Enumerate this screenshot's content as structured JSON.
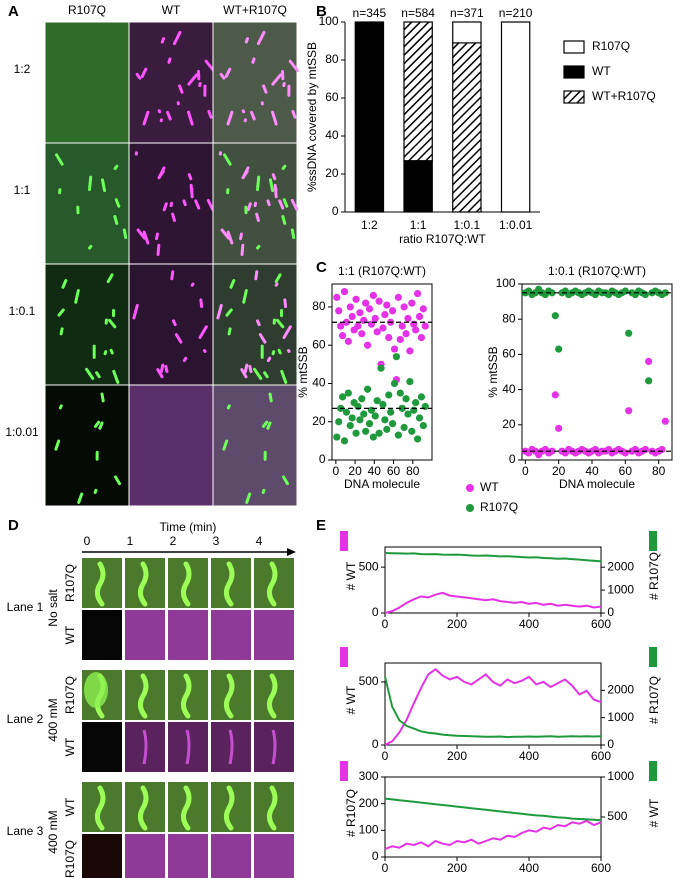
{
  "panel_labels": [
    "A",
    "B",
    "C",
    "D",
    "E"
  ],
  "panel_a": {
    "columns": [
      "R107Q",
      "WT",
      "WT+R107Q"
    ],
    "rows": [
      "1:2",
      "1:1",
      "1:0.1",
      "1:0.01"
    ]
  },
  "panel_d": {
    "time_label": "Time (min)",
    "time_ticks": [
      0,
      1,
      2,
      3,
      4
    ],
    "lanes": [
      {
        "name": "Lane 1",
        "condition": "No salt",
        "rows": [
          "R107Q",
          "WT"
        ]
      },
      {
        "name": "Lane 2",
        "condition": "400 mM",
        "rows": [
          "R107Q",
          "WT"
        ]
      },
      {
        "name": "Lane 3",
        "condition": "400 mM",
        "rows": [
          "WT",
          "R107Q"
        ]
      }
    ]
  },
  "chart_data": [
    {
      "type": "bar",
      "stacked": true,
      "ylabel": "%ssDNA covered by mtSSB",
      "xlabel": "ratio R107Q:WT",
      "categories": [
        "1:2",
        "1:1",
        "1:0.1",
        "1:0.01"
      ],
      "bar_labels": [
        "n=345",
        "n=584",
        "n=371",
        "n=210"
      ],
      "series": [
        {
          "name": "WT",
          "color": "#000000",
          "values": [
            100,
            27,
            0,
            0
          ]
        },
        {
          "name": "WT+R107Q",
          "color": "#ffffff",
          "pattern": "hatch",
          "values": [
            0,
            73,
            89,
            0
          ]
        },
        {
          "name": "R107Q",
          "color": "#ffffff",
          "values": [
            0,
            0,
            11,
            100
          ]
        }
      ],
      "ylim": [
        0,
        100
      ],
      "yticks": [
        0,
        20,
        40,
        60,
        80,
        100
      ]
    },
    {
      "type": "scatter",
      "title": "1:1 (R107Q:WT)",
      "xlabel": "DNA molecule",
      "ylabel": "% mtSSB",
      "x": [
        1,
        3,
        5,
        7,
        9,
        11,
        13,
        15,
        17,
        19,
        21,
        23,
        25,
        27,
        29,
        31,
        33,
        35,
        37,
        39,
        41,
        43,
        45,
        47,
        49,
        51,
        53,
        55,
        57,
        59,
        61,
        63,
        65,
        67,
        69,
        71,
        73,
        75,
        77,
        79,
        81,
        83,
        85,
        87,
        89,
        91,
        93
      ],
      "series": [
        {
          "name": "WT",
          "color": "#e632e6",
          "values": [
            85,
            78,
            70,
            65,
            88,
            72,
            62,
            80,
            75,
            68,
            84,
            70,
            77,
            66,
            73,
            82,
            60,
            79,
            71,
            86,
            74,
            67,
            83,
            50,
            69,
            76,
            81,
            64,
            72,
            78,
            58,
            42,
            85,
            63,
            70,
            80,
            66,
            74,
            57,
            82,
            71,
            68,
            87,
            75,
            64,
            79,
            70
          ]
        },
        {
          "name": "R107Q",
          "color": "#1e9a3c",
          "values": [
            12,
            20,
            27,
            33,
            10,
            25,
            35,
            18,
            22,
            30,
            14,
            28,
            21,
            32,
            24,
            15,
            37,
            19,
            26,
            12,
            23,
            31,
            14,
            48,
            29,
            21,
            16,
            34,
            25,
            19,
            40,
            54,
            13,
            35,
            27,
            17,
            32,
            24,
            41,
            15,
            26,
            30,
            11,
            22,
            33,
            18,
            28
          ]
        }
      ],
      "hlines": [
        72,
        27
      ],
      "xlim": [
        -4,
        100
      ],
      "xticks": [
        0,
        20,
        40,
        60,
        80
      ],
      "ylim": [
        0,
        92
      ],
      "yticks": [
        0,
        20,
        40,
        60,
        80
      ]
    },
    {
      "type": "scatter",
      "title": "1:0.1 (R107Q:WT)",
      "xlabel": "DNA molecule",
      "ylabel": "% mtSSB",
      "x": [
        0,
        2,
        4,
        6,
        8,
        10,
        12,
        14,
        16,
        18,
        20,
        22,
        24,
        26,
        28,
        30,
        32,
        34,
        36,
        38,
        40,
        42,
        44,
        46,
        48,
        50,
        52,
        54,
        56,
        58,
        60,
        62,
        64,
        66,
        68,
        70,
        72,
        74,
        76,
        78,
        80,
        82,
        84
      ],
      "series": [
        {
          "color": "#e632e6",
          "values": [
            5,
            4,
            6,
            5,
            3,
            5,
            6,
            4,
            5,
            37,
            18,
            5,
            4,
            6,
            5,
            4,
            5,
            6,
            5,
            4,
            5,
            6,
            4,
            5,
            5,
            6,
            4,
            5,
            6,
            5,
            4,
            28,
            5,
            6,
            4,
            5,
            6,
            56,
            5,
            4,
            5,
            6,
            22
          ]
        },
        {
          "color": "#1e9a3c",
          "values": [
            95,
            96,
            94,
            95,
            97,
            95,
            94,
            96,
            95,
            82,
            63,
            95,
            96,
            94,
            95,
            96,
            95,
            94,
            95,
            96,
            95,
            94,
            96,
            95,
            95,
            94,
            96,
            95,
            94,
            95,
            96,
            72,
            95,
            94,
            96,
            95,
            94,
            45,
            95,
            96,
            95,
            94,
            95
          ]
        }
      ],
      "hlines": [
        95,
        5
      ],
      "xlim": [
        -2,
        88
      ],
      "xticks": [
        0,
        20,
        40,
        60,
        80
      ],
      "ylim": [
        0,
        100
      ],
      "yticks": [
        0,
        20,
        40,
        60,
        80,
        100
      ]
    },
    {
      "type": "line",
      "ylabel": "# WT",
      "y2label": "# R107Q",
      "x": [
        0,
        20,
        40,
        60,
        80,
        100,
        120,
        140,
        160,
        180,
        200,
        220,
        240,
        260,
        280,
        300,
        320,
        340,
        360,
        380,
        400,
        420,
        440,
        460,
        480,
        500,
        520,
        540,
        560,
        580,
        600
      ],
      "series": [
        {
          "color": "#e632e6",
          "values": [
            0,
            20,
            60,
            110,
            150,
            180,
            170,
            200,
            220,
            190,
            180,
            170,
            160,
            150,
            140,
            150,
            130,
            120,
            110,
            120,
            100,
            110,
            90,
            100,
            80,
            90,
            80,
            70,
            80,
            60,
            70
          ]
        },
        {
          "color": "#1e9a3c",
          "axis": "y2",
          "values": [
            2620,
            2610,
            2600,
            2590,
            2600,
            2570,
            2560,
            2570,
            2550,
            2540,
            2550,
            2530,
            2510,
            2500,
            2510,
            2490,
            2470,
            2480,
            2460,
            2440,
            2420,
            2430,
            2400,
            2390,
            2370,
            2380,
            2350,
            2330,
            2300,
            2280,
            2250
          ]
        }
      ],
      "xlim": [
        0,
        600
      ],
      "xticks": [
        0,
        200,
        400,
        600
      ],
      "ylim": [
        0,
        720
      ],
      "yticks": [
        0,
        500
      ],
      "y2lim": [
        0,
        2880
      ],
      "y2ticks": [
        0,
        1000,
        2000
      ]
    },
    {
      "type": "line",
      "ylabel": "# WT",
      "y2label": "# R107Q",
      "x": [
        0,
        20,
        40,
        60,
        80,
        100,
        120,
        140,
        160,
        180,
        200,
        220,
        240,
        260,
        280,
        300,
        320,
        340,
        360,
        380,
        400,
        420,
        440,
        460,
        480,
        500,
        520,
        540,
        560,
        580,
        600
      ],
      "series": [
        {
          "color": "#e632e6",
          "values": [
            0,
            30,
            100,
            200,
            330,
            450,
            560,
            600,
            550,
            520,
            540,
            500,
            480,
            520,
            560,
            500,
            470,
            520,
            490,
            510,
            540,
            480,
            500,
            460,
            490,
            520,
            470,
            400,
            430,
            360,
            340
          ]
        },
        {
          "color": "#1e9a3c",
          "axis": "y2",
          "values": [
            2500,
            1400,
            900,
            700,
            600,
            500,
            450,
            420,
            380,
            360,
            340,
            330,
            320,
            310,
            300,
            300,
            310,
            290,
            300,
            300,
            310,
            300,
            310,
            320,
            300,
            310,
            320,
            310,
            320,
            310,
            320
          ]
        }
      ],
      "xlim": [
        0,
        600
      ],
      "xticks": [
        0,
        200,
        400,
        600
      ],
      "ylim": [
        0,
        650
      ],
      "yticks": [
        0,
        500
      ],
      "y2lim": [
        0,
        3000
      ],
      "y2ticks": [
        0,
        1000,
        2000
      ]
    },
    {
      "type": "line",
      "ylabel": "# R107Q",
      "y2label": "# WT",
      "x": [
        0,
        20,
        40,
        60,
        80,
        100,
        120,
        140,
        160,
        180,
        200,
        220,
        240,
        260,
        280,
        300,
        320,
        340,
        360,
        380,
        400,
        420,
        440,
        460,
        480,
        500,
        520,
        540,
        560,
        580,
        600
      ],
      "series": [
        {
          "color": "#e632e6",
          "values": [
            30,
            40,
            35,
            50,
            45,
            55,
            40,
            60,
            50,
            45,
            60,
            55,
            65,
            50,
            60,
            70,
            65,
            80,
            75,
            90,
            100,
            95,
            110,
            105,
            120,
            115,
            130,
            125,
            135,
            120,
            130
          ]
        },
        {
          "color": "#1e9a3c",
          "axis": "y2",
          "values": [
            730,
            720,
            710,
            700,
            690,
            680,
            670,
            660,
            650,
            640,
            630,
            620,
            610,
            600,
            590,
            580,
            570,
            560,
            550,
            540,
            530,
            520,
            515,
            505,
            495,
            490,
            480,
            475,
            470,
            465,
            460
          ]
        }
      ],
      "xlim": [
        0,
        600
      ],
      "xticks": [
        0,
        200,
        400,
        600
      ],
      "ylim": [
        0,
        300
      ],
      "yticks": [
        0,
        100,
        200,
        300
      ],
      "y2lim": [
        0,
        1000
      ],
      "y2ticks": [
        500,
        1000
      ]
    }
  ]
}
